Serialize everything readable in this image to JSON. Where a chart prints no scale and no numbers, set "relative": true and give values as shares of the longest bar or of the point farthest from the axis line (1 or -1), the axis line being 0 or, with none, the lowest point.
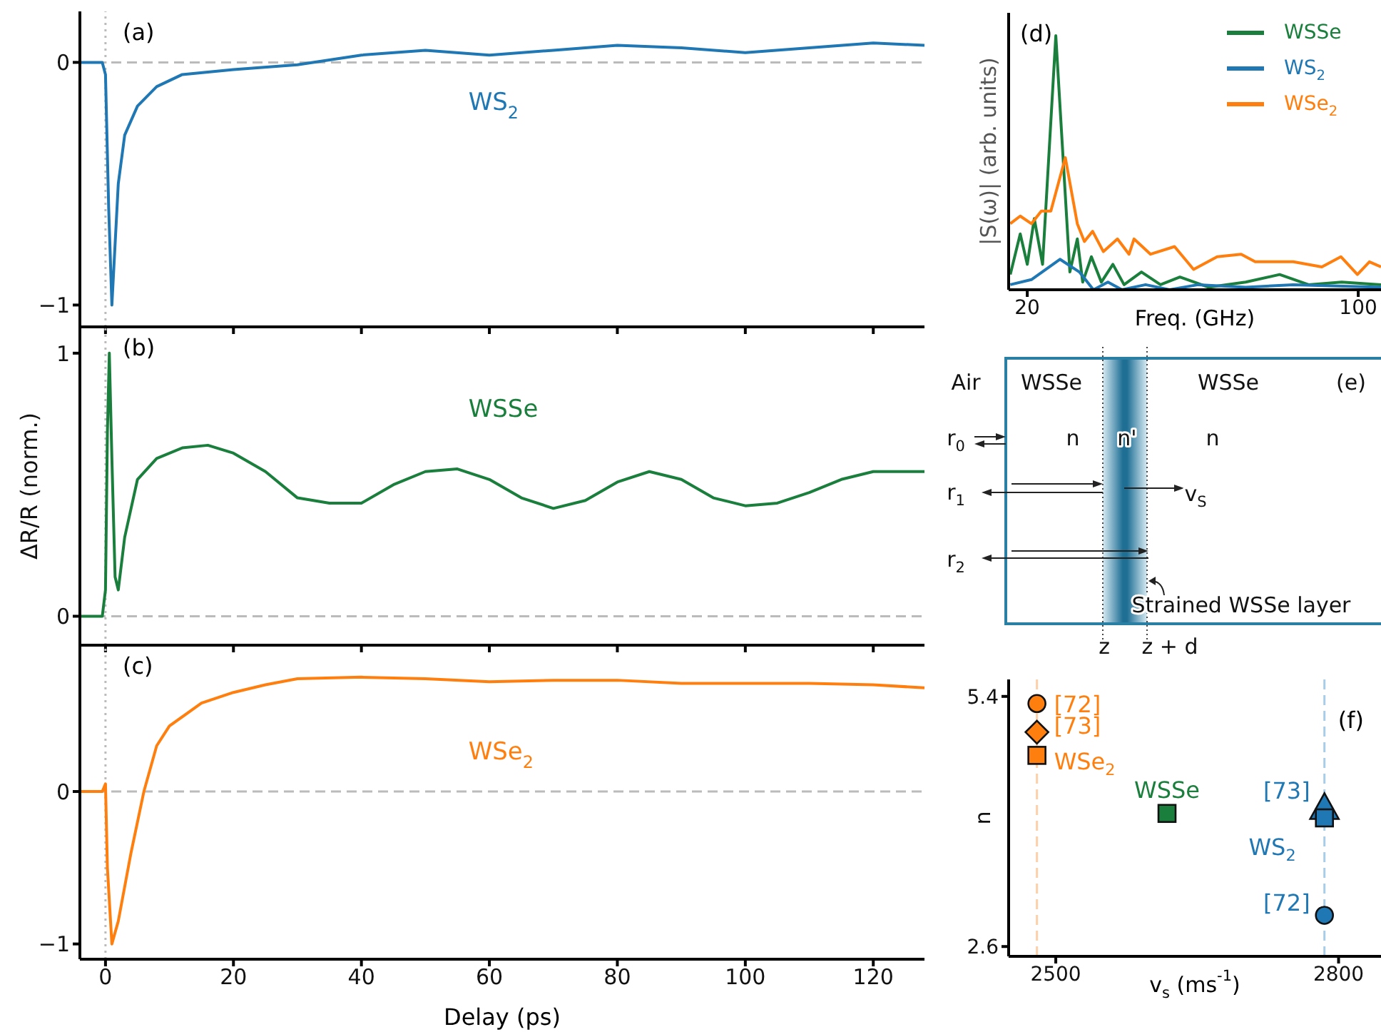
{
  "chart_data": [
    {
      "type": "line",
      "annotations": [
        "(a)"
      ],
      "xlim": [
        -4,
        128
      ],
      "xticks": [
        0,
        20,
        40,
        60,
        80,
        100,
        120
      ],
      "ylim": [
        -1.09,
        0.21
      ],
      "yticks": [
        {
          "value": -1,
          "label": "−1"
        },
        0
      ],
      "tick_labels": "y",
      "legend": false,
      "marker": "none",
      "ref_lines": [
        {
          "axis": "y",
          "value": 0,
          "color": "#bbbbbb",
          "line_style": "dashed"
        },
        {
          "axis": "x",
          "value": 0,
          "color": "#bbbbbb",
          "line_style": "dotted"
        }
      ],
      "series": [
        {
          "name": "WS$_{2}$",
          "color": "#1f77b4",
          "x": [
            -4,
            -0.5,
            0,
            0.5,
            1,
            1.5,
            2,
            3,
            5,
            8,
            12,
            20,
            30,
            40,
            50,
            60,
            70,
            80,
            90,
            100,
            110,
            120,
            128
          ],
          "values": [
            0,
            0,
            -0.05,
            -0.6,
            -1,
            -0.75,
            -0.5,
            -0.3,
            -0.18,
            -0.1,
            -0.05,
            -0.03,
            -0.01,
            0.03,
            0.05,
            0.03,
            0.05,
            0.07,
            0.06,
            0.04,
            0.06,
            0.08,
            0.07
          ]
        }
      ]
    },
    {
      "type": "line",
      "annotations": [
        "(b)"
      ],
      "ylabel": "ΔR/R (norm.)",
      "xlim": [
        -4,
        128
      ],
      "xticks": [
        0,
        20,
        40,
        60,
        80,
        100,
        120
      ],
      "ylim": [
        -0.11,
        1.1
      ],
      "yticks": [
        0,
        1
      ],
      "tick_labels": "y",
      "legend": false,
      "marker": "none",
      "ref_lines": [
        {
          "axis": "y",
          "value": 0,
          "color": "#bbbbbb",
          "line_style": "dashed"
        },
        {
          "axis": "x",
          "value": 0,
          "color": "#bbbbbb",
          "line_style": "dotted"
        }
      ],
      "series": [
        {
          "name": "WSSe",
          "color": "#1a7f3c",
          "x": [
            -4,
            -0.5,
            0,
            0.3,
            0.6,
            1,
            1.5,
            2,
            3,
            5,
            8,
            12,
            16,
            20,
            25,
            30,
            35,
            40,
            45,
            50,
            55,
            60,
            65,
            70,
            75,
            80,
            85,
            90,
            95,
            100,
            105,
            110,
            115,
            120,
            128
          ],
          "values": [
            0,
            0,
            0.1,
            0.7,
            1,
            0.6,
            0.15,
            0.1,
            0.3,
            0.52,
            0.6,
            0.64,
            0.65,
            0.62,
            0.55,
            0.45,
            0.43,
            0.43,
            0.5,
            0.55,
            0.56,
            0.52,
            0.45,
            0.41,
            0.44,
            0.51,
            0.55,
            0.52,
            0.45,
            0.42,
            0.43,
            0.47,
            0.52,
            0.55,
            0.55
          ]
        }
      ]
    },
    {
      "type": "line",
      "annotations": [
        "(c)"
      ],
      "xlabel": "Delay (ps)",
      "xlim": [
        -4,
        128
      ],
      "xticks": [
        0,
        20,
        40,
        60,
        80,
        100,
        120
      ],
      "ylim": [
        -1.1,
        0.96
      ],
      "yticks": [
        {
          "value": -1,
          "label": "−1"
        },
        0
      ],
      "legend": false,
      "marker": "none",
      "ref_lines": [
        {
          "axis": "y",
          "value": 0,
          "color": "#bbbbbb",
          "line_style": "dashed"
        },
        {
          "axis": "x",
          "value": 0,
          "color": "#bbbbbb",
          "line_style": "dotted"
        }
      ],
      "series": [
        {
          "name": "WSe$_{2}$",
          "color": "#ff7f0e",
          "x": [
            -4,
            -0.5,
            0,
            0.3,
            1,
            2,
            4,
            6,
            8,
            10,
            15,
            20,
            25,
            30,
            40,
            50,
            60,
            70,
            80,
            90,
            100,
            110,
            120,
            128
          ],
          "values": [
            0,
            0,
            0.05,
            -0.5,
            -1,
            -0.85,
            -0.4,
            0,
            0.3,
            0.43,
            0.58,
            0.65,
            0.7,
            0.74,
            0.75,
            0.74,
            0.72,
            0.73,
            0.73,
            0.71,
            0.71,
            0.71,
            0.7,
            0.68
          ]
        }
      ]
    },
    {
      "type": "line",
      "relative": true,
      "annotations": [
        "(d)"
      ],
      "xlabel": "Freq. (GHz)",
      "ylabel": "|S(ω)| (arb. units)",
      "xlim": [
        15.5,
        105.5
      ],
      "xticks": [
        20,
        100
      ],
      "legend": "top right",
      "marker": "none",
      "series": [
        {
          "name": "WSSe",
          "color": "#1a7f3c",
          "x": [
            15.9,
            18.3,
            20,
            21.7,
            23.7,
            26.9,
            30.3,
            32.1,
            33.4,
            35.5,
            37.9,
            40.7,
            43.4,
            47.6,
            52.2,
            56.9,
            63.8,
            72.8,
            81,
            88,
            96,
            105.5
          ],
          "values": [
            0.06,
            0.22,
            0.1,
            0.28,
            0.1,
            1,
            0.07,
            0.2,
            0.03,
            0.13,
            0.03,
            0.1,
            0.02,
            0.07,
            0.02,
            0.05,
            0.01,
            0.03,
            0.06,
            0.02,
            0.03,
            0.02
          ]
        },
        {
          "name": "WS$_{2}$",
          "color": "#1f77b4",
          "x": [
            15.9,
            21,
            27.9,
            32.6,
            36,
            39.5,
            42.9,
            48.6,
            54.4,
            61.3,
            72.8,
            84.3,
            105.5
          ],
          "values": [
            0.02,
            0.04,
            0.12,
            0.07,
            0,
            0.03,
            0,
            0.02,
            0,
            0.02,
            0.01,
            0.02,
            0.01
          ]
        },
        {
          "name": "WSe$_{2}$",
          "color": "#ff7f0e",
          "x": [
            15.9,
            18.3,
            21,
            23.4,
            25.7,
            29.2,
            32.1,
            33.8,
            35.8,
            38.4,
            41.8,
            44.6,
            45.8,
            49.8,
            55.6,
            60.2,
            65.9,
            71.7,
            75.1,
            84.3,
            91.2,
            95.8,
            99.8,
            102.7,
            105.5
          ],
          "values": [
            0.26,
            0.29,
            0.26,
            0.31,
            0.31,
            0.52,
            0.26,
            0.19,
            0.23,
            0.15,
            0.2,
            0.14,
            0.2,
            0.14,
            0.17,
            0.08,
            0.13,
            0.14,
            0.11,
            0.11,
            0.09,
            0.13,
            0.06,
            0.11,
            0.09
          ]
        }
      ]
    },
    {
      "type": "other",
      "annotations": [
        "Air",
        "WSSe",
        "WSSe",
        "(e)",
        "r$_{0}$",
        "n",
        "n'",
        "n",
        "r$_{1}$",
        "v$_{S}$",
        "r$_{2}$",
        "Strained WSSe layer",
        "z",
        "z + d"
      ]
    },
    {
      "type": "scatter",
      "annotations": [
        "(f)"
      ],
      "xlabel": "v$_{s}$ (ms$^{-1}$)",
      "ylabel": "n",
      "xlim": [
        2450,
        2845
      ],
      "xticks": [
        2500,
        2800
      ],
      "ylim": [
        2.49,
        5.59
      ],
      "yticks": [
        2.6,
        5.4
      ],
      "legend": false,
      "ref_lines": [
        {
          "axis": "x",
          "value": 2480,
          "color": "#fcd0a8",
          "line_style": "dashed"
        },
        {
          "axis": "x",
          "value": 2785,
          "color": "#a8cde8",
          "line_style": "dashed"
        }
      ],
      "series": [
        {
          "name": "[72]",
          "color": "#ff7f0e",
          "marker": "circle",
          "x": [
            2480
          ],
          "values": [
            5.32
          ]
        },
        {
          "name": "[73]",
          "color": "#ff7f0e",
          "marker": "diamond",
          "x": [
            2480
          ],
          "values": [
            5.0
          ]
        },
        {
          "name": "WSe$_{2}$",
          "color": "#ff7f0e",
          "marker": "square",
          "x": [
            2480
          ],
          "values": [
            4.74
          ]
        },
        {
          "name": "WSSe",
          "color": "#1a7f3c",
          "marker": "square",
          "x": [
            2618
          ],
          "values": [
            4.09
          ]
        },
        {
          "name": "[73]",
          "color": "#1f77b4",
          "marker": "triangle",
          "x": [
            2785
          ],
          "values": [
            4.14
          ]
        },
        {
          "name": "WS$_{2}$",
          "color": "#1f77b4",
          "marker": "square",
          "x": [
            2785
          ],
          "values": [
            4.04
          ]
        },
        {
          "name": "[72]",
          "color": "#1f77b4",
          "marker": "circle",
          "x": [
            2785
          ],
          "values": [
            2.95
          ]
        }
      ]
    }
  ]
}
